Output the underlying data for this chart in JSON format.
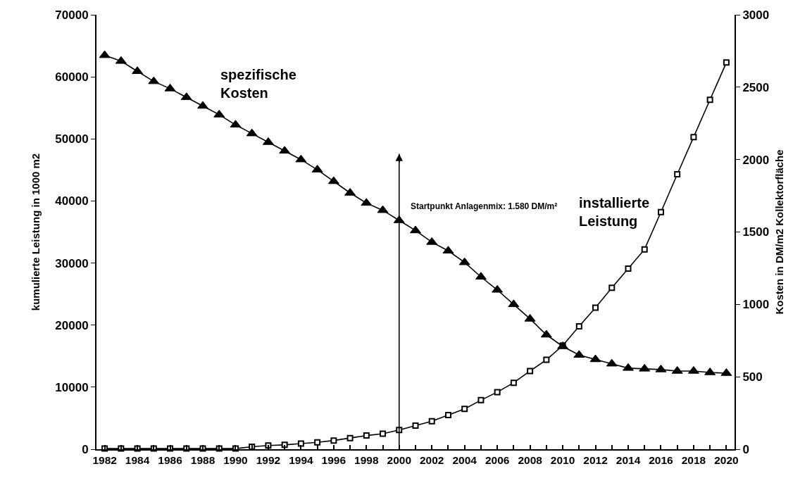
{
  "chart_data": {
    "type": "line",
    "ylabel": "kumulierte Leistung in 1000 m2",
    "y2label": "Kosten in DM/m2 Kollektorfläche",
    "x": [
      1982,
      1983,
      1984,
      1985,
      1986,
      1987,
      1988,
      1989,
      1990,
      1991,
      1992,
      1993,
      1994,
      1995,
      1996,
      1997,
      1998,
      1999,
      2000,
      2001,
      2002,
      2003,
      2004,
      2005,
      2006,
      2007,
      2008,
      2009,
      2010,
      2011,
      2012,
      2013,
      2014,
      2015,
      2016,
      2017,
      2018,
      2019,
      2020
    ],
    "series": [
      {
        "name": "spezifische Kosten",
        "color": "#000000",
        "axis": "y2",
        "marker": "triangle",
        "values": [
          2720,
          2680,
          2610,
          2540,
          2490,
          2430,
          2370,
          2310,
          2240,
          2180,
          2120,
          2060,
          2000,
          1930,
          1850,
          1770,
          1700,
          1650,
          1580,
          1510,
          1430,
          1370,
          1290,
          1190,
          1100,
          1000,
          900,
          790,
          710,
          650,
          620,
          590,
          560,
          555,
          550,
          540,
          540,
          530,
          525
        ]
      },
      {
        "name": "installierte Leistung",
        "color": "#000000",
        "marker": "square",
        "values": [
          100,
          100,
          100,
          100,
          100,
          100,
          100,
          100,
          100,
          400,
          600,
          700,
          900,
          1100,
          1400,
          1800,
          2200,
          2500,
          3100,
          3800,
          4500,
          5500,
          6500,
          7900,
          9200,
          10700,
          12600,
          14400,
          16700,
          19800,
          22800,
          26000,
          29100,
          32200,
          38200,
          44300,
          50300,
          56300,
          62300
        ]
      }
    ],
    "xlim": [
      1981.5,
      2020.5
    ],
    "xticks": [
      1982,
      {
        "value": 1983,
        "label": null
      },
      1984,
      {
        "value": 1985,
        "label": null
      },
      1986,
      {
        "value": 1987,
        "label": null
      },
      1988,
      {
        "value": 1989,
        "label": null
      },
      1990,
      {
        "value": 1991,
        "label": null
      },
      1992,
      {
        "value": 1993,
        "label": null
      },
      1994,
      {
        "value": 1995,
        "label": null
      },
      1996,
      {
        "value": 1997,
        "label": null
      },
      1998,
      {
        "value": 1999,
        "label": null
      },
      2000,
      {
        "value": 2001,
        "label": null
      },
      2002,
      {
        "value": 2003,
        "label": null
      },
      2004,
      {
        "value": 2005,
        "label": null
      },
      2006,
      {
        "value": 2007,
        "label": null
      },
      2008,
      {
        "value": 2009,
        "label": null
      },
      2010,
      {
        "value": 2011,
        "label": null
      },
      2012,
      {
        "value": 2013,
        "label": null
      },
      2014,
      {
        "value": 2015,
        "label": null
      },
      2016,
      {
        "value": 2017,
        "label": null
      },
      2018,
      {
        "value": 2019,
        "label": null
      },
      2020
    ],
    "ylim": [
      0,
      70000
    ],
    "yticks": [
      0,
      10000,
      20000,
      30000,
      40000,
      50000,
      60000,
      70000
    ],
    "y2lim": [
      0,
      3000
    ],
    "y2ticks": [
      0,
      500,
      1000,
      1500,
      2000,
      2500,
      3000
    ],
    "ref_lines": [
      {
        "axis": "x",
        "value": 2000,
        "color": "#000000",
        "line_style": "solid"
      }
    ],
    "annotations": [
      "Startpunkt Anlagenmix: 1.580 DM/m²"
    ],
    "grid": false,
    "legend": false,
    "line_style": "solid"
  }
}
